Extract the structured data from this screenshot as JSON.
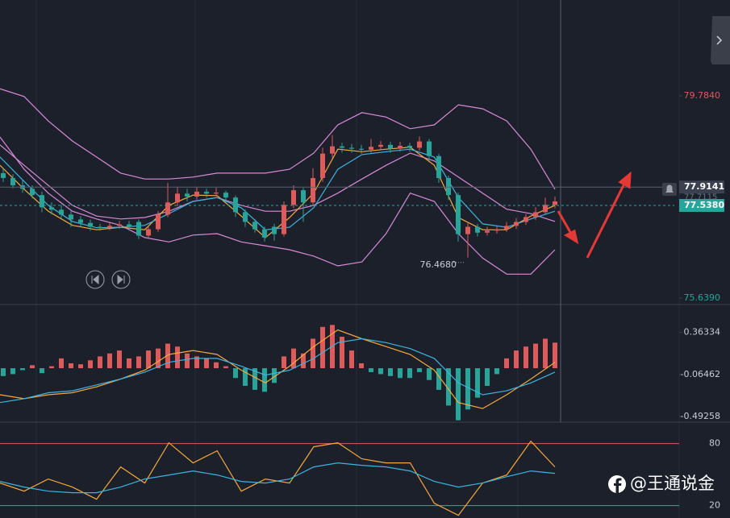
{
  "chart_data": [
    {
      "type": "candlestick",
      "ylim": [
        75.507,
        81.749
      ],
      "yticks": [
        {
          "value": 79.784,
          "label": "79.7840"
        },
        {
          "value": 75.639,
          "label": "75.6390"
        }
      ],
      "up_color": "#e05a5a",
      "down_color": "#26a69a",
      "open": [
        78.2,
        78.1,
        77.95,
        77.88,
        77.75,
        77.5,
        77.45,
        77.35,
        77.25,
        77.18,
        77.1,
        77.08,
        77.12,
        77.15,
        77.2,
        76.92,
        77.05,
        77.35,
        77.6,
        77.78,
        77.72,
        77.82,
        77.78,
        77.8,
        77.7,
        77.4,
        77.2,
        77.05,
        77.1,
        76.95,
        77.55,
        77.85,
        77.6,
        78.1,
        78.6,
        78.75,
        78.72,
        78.7,
        78.68,
        78.74,
        78.78,
        78.7,
        78.76,
        78.72,
        78.85,
        78.55,
        78.1,
        77.75,
        76.95,
        77.1,
        76.98,
        77.02,
        77.05,
        77.12,
        77.2,
        77.3,
        77.4,
        77.55
      ],
      "high": [
        78.3,
        78.18,
        78.05,
        77.95,
        77.82,
        77.6,
        77.55,
        77.42,
        77.32,
        77.25,
        77.16,
        77.18,
        77.22,
        77.22,
        77.25,
        77.12,
        77.42,
        78.0,
        77.92,
        77.88,
        77.92,
        77.88,
        77.9,
        77.84,
        77.74,
        77.46,
        77.26,
        77.1,
        77.16,
        77.62,
        77.95,
        77.9,
        78.3,
        78.72,
        78.98,
        78.82,
        78.8,
        78.78,
        78.9,
        78.86,
        78.84,
        78.84,
        78.82,
        78.95,
        78.9,
        78.6,
        78.15,
        77.8,
        77.2,
        77.16,
        77.1,
        77.12,
        77.2,
        77.28,
        77.36,
        77.5,
        77.7,
        77.72
      ],
      "low": [
        78.02,
        77.88,
        77.8,
        77.68,
        77.4,
        77.35,
        77.28,
        77.1,
        77.1,
        77.02,
        77.02,
        77.03,
        77.06,
        77.02,
        76.85,
        76.88,
        77.0,
        77.3,
        77.52,
        77.62,
        77.66,
        77.7,
        77.72,
        77.6,
        77.3,
        77.1,
        76.98,
        76.8,
        76.82,
        76.9,
        77.48,
        77.2,
        77.55,
        78.02,
        78.52,
        78.62,
        78.62,
        78.6,
        78.62,
        78.68,
        78.62,
        78.64,
        78.64,
        78.66,
        78.45,
        78.0,
        77.65,
        76.8,
        76.468,
        76.9,
        76.92,
        76.96,
        77.0,
        77.06,
        77.14,
        77.24,
        77.36,
        77.48
      ],
      "close": [
        78.1,
        77.95,
        77.88,
        77.75,
        77.5,
        77.45,
        77.35,
        77.25,
        77.18,
        77.1,
        77.08,
        77.12,
        77.15,
        77.1,
        76.92,
        77.05,
        77.35,
        77.6,
        77.78,
        77.72,
        77.82,
        77.78,
        77.8,
        77.7,
        77.4,
        77.2,
        77.05,
        76.88,
        76.95,
        77.55,
        77.85,
        77.6,
        78.1,
        78.6,
        78.75,
        78.72,
        78.7,
        78.68,
        78.74,
        78.78,
        78.7,
        78.76,
        78.72,
        78.85,
        78.55,
        78.1,
        77.75,
        76.95,
        77.1,
        76.98,
        77.02,
        77.05,
        77.12,
        77.2,
        77.3,
        77.4,
        77.55,
        77.62
      ],
      "series": [
        {
          "color": "#d98ad9",
          "values": [
            79.93,
            79.77,
            79.27,
            78.86,
            78.53,
            78.2,
            78.08,
            78.08,
            78.12,
            78.2,
            78.2,
            78.2,
            78.28,
            78.61,
            79.19,
            79.44,
            79.35,
            79.11,
            79.19,
            79.6,
            79.52,
            79.27,
            78.69,
            77.87
          ]
        },
        {
          "color": "#d98ad9",
          "values": [
            78.78,
            78.36,
            77.95,
            77.54,
            77.32,
            77.26,
            77.29,
            77.42,
            77.62,
            77.7,
            77.54,
            77.42,
            77.42,
            77.54,
            77.79,
            78.08,
            78.36,
            78.61,
            78.45,
            78.12,
            77.79,
            77.46,
            77.37,
            77.21
          ]
        },
        {
          "color": "#d98ad9",
          "values": [
            78.94,
            78.28,
            77.79,
            77.42,
            77.26,
            77.13,
            76.88,
            76.79,
            76.93,
            76.96,
            76.79,
            76.71,
            76.63,
            76.5,
            76.3,
            76.38,
            76.96,
            77.79,
            77.62,
            76.96,
            76.46,
            76.13,
            76.13,
            76.63
          ]
        },
        {
          "color": "#f5a93a",
          "values": [
            78.36,
            77.87,
            77.42,
            77.13,
            77.04,
            77.09,
            77.04,
            77.54,
            77.75,
            77.74,
            77.32,
            76.88,
            77.29,
            77.79,
            78.69,
            78.64,
            78.69,
            78.73,
            78.36,
            77.29,
            77.04,
            77.04,
            77.32,
            77.54
          ]
        },
        {
          "color": "#3cb4e0",
          "values": [
            78.53,
            78.03,
            77.54,
            77.21,
            77.08,
            77.09,
            77.13,
            77.37,
            77.62,
            77.7,
            77.49,
            77.04,
            77.09,
            77.49,
            78.28,
            78.58,
            78.64,
            78.69,
            78.53,
            77.7,
            77.16,
            77.09,
            77.26,
            77.42
          ]
        }
      ],
      "price_lines": [
        {
          "value": 77.9141,
          "label": "77.9141",
          "color": "#3b4150"
        },
        {
          "value": 77.538,
          "label": "77.5380",
          "color": "#26a69a"
        }
      ],
      "hidden_label": {
        "value": 77.7115,
        "label": "77.7115"
      },
      "low_label": {
        "value": 76.468,
        "label": "76.4680"
      }
    },
    {
      "type": "histogram",
      "ylim": [
        -0.557,
        0.648
      ],
      "yticks": [
        0.36334,
        -0.06462,
        -0.49258
      ],
      "up_color": "#e05a5a",
      "down_color": "#26a69a",
      "values": [
        -0.08,
        -0.06,
        -0.02,
        0.03,
        -0.05,
        0.02,
        0.1,
        0.05,
        0.04,
        0.08,
        0.12,
        0.15,
        0.18,
        0.1,
        0.12,
        0.18,
        0.2,
        0.25,
        0.22,
        0.15,
        0.12,
        0.1,
        0.06,
        0.02,
        -0.1,
        -0.18,
        -0.22,
        -0.24,
        -0.15,
        0.12,
        0.2,
        0.15,
        0.3,
        0.42,
        0.44,
        0.32,
        0.18,
        0.05,
        -0.04,
        -0.06,
        -0.08,
        -0.1,
        -0.1,
        -0.04,
        -0.12,
        -0.22,
        -0.38,
        -0.53,
        -0.42,
        -0.3,
        -0.18,
        -0.06,
        0.1,
        0.18,
        0.22,
        0.25,
        0.3,
        0.26
      ],
      "series": [
        {
          "color": "#f5a93a",
          "values": [
            -0.27,
            -0.31,
            -0.27,
            -0.25,
            -0.19,
            -0.11,
            -0.02,
            0.14,
            0.18,
            0.14,
            -0.02,
            -0.15,
            0.02,
            0.22,
            0.39,
            0.3,
            0.22,
            0.14,
            -0.02,
            -0.35,
            -0.41,
            -0.27,
            -0.11,
            0.06
          ]
        },
        {
          "color": "#3cb4e0",
          "values": [
            -0.35,
            -0.31,
            -0.25,
            -0.23,
            -0.17,
            -0.11,
            -0.04,
            0.06,
            0.1,
            0.1,
            0.02,
            -0.07,
            -0.02,
            0.1,
            0.26,
            0.3,
            0.26,
            0.2,
            0.1,
            -0.15,
            -0.27,
            -0.23,
            -0.15,
            -0.04
          ]
        }
      ]
    },
    {
      "type": "line",
      "ylim": [
        8,
        100
      ],
      "yticks": [
        80,
        20
      ],
      "tick_line_colors": [
        "#e05a5a",
        "#2bb38a"
      ],
      "series": [
        {
          "color": "#f5a93a",
          "values": [
            41.8,
            34.0,
            45.7,
            37.9,
            26.2,
            57.4,
            41.8,
            80.8,
            61.3,
            73.0,
            34.0,
            45.7,
            41.8,
            76.9,
            80.8,
            65.2,
            61.3,
            61.3,
            22.3,
            10.6,
            41.8,
            49.6,
            82.3,
            57.4
          ]
        },
        {
          "color": "#3cb4e0",
          "values": [
            43.4,
            37.9,
            34.0,
            32.5,
            32.5,
            37.9,
            45.7,
            49.6,
            53.5,
            49.6,
            43.4,
            41.8,
            45.7,
            57.4,
            61.3,
            59.0,
            57.4,
            53.5,
            43.4,
            37.9,
            41.8,
            48.0,
            53.5,
            51.2
          ]
        }
      ]
    }
  ],
  "watermark": "@王通说金"
}
